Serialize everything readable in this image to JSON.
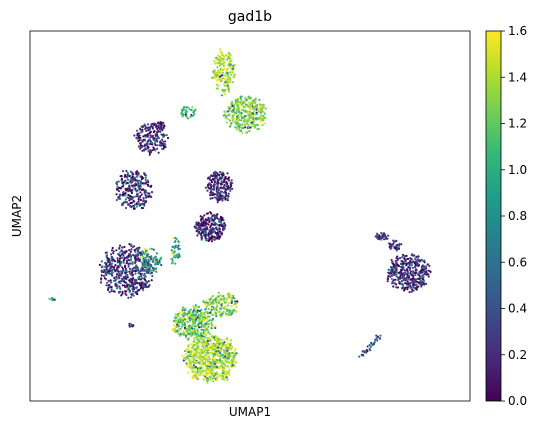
{
  "chart_data": {
    "type": "scatter",
    "title": "gad1b",
    "xlabel": "UMAP1",
    "ylabel": "UMAP2",
    "xticks": [],
    "yticks": [],
    "xlim": [
      0,
      100
    ],
    "ylim": [
      0,
      100
    ],
    "grid": false,
    "legend": "none",
    "colorbar": {
      "label": "",
      "range": [
        0.0,
        1.6
      ],
      "ticks": [
        0.0,
        0.2,
        0.4,
        0.6,
        0.8,
        1.0,
        1.2,
        1.4,
        1.6
      ],
      "tick_labels": [
        "0.0",
        "0.2",
        "0.4",
        "0.6",
        "0.8",
        "1.0",
        "1.2",
        "1.4",
        "1.6"
      ],
      "colormap": "viridis",
      "placement": "right"
    },
    "clusters": [
      {
        "cx": 44.0,
        "cy": 89.0,
        "rx": 2.6,
        "ry": 6.0,
        "n": 180,
        "value": 1.4,
        "spread": 0.12
      },
      {
        "cx": 49.0,
        "cy": 77.5,
        "rx": 4.8,
        "ry": 4.8,
        "n": 320,
        "value": 1.3,
        "spread": 0.15
      },
      {
        "cx": 36.0,
        "cy": 78.0,
        "rx": 1.8,
        "ry": 1.6,
        "n": 40,
        "value": 1.1,
        "spread": 0.15
      },
      {
        "cx": 27.5,
        "cy": 71.0,
        "rx": 3.6,
        "ry": 4.2,
        "n": 180,
        "value": 0.15,
        "spread": 0.2
      },
      {
        "cx": 23.5,
        "cy": 57.0,
        "rx": 4.2,
        "ry": 5.5,
        "n": 260,
        "value": 0.15,
        "spread": 0.3
      },
      {
        "cx": 29.5,
        "cy": 74.5,
        "rx": 1.2,
        "ry": 1.0,
        "n": 30,
        "value": 0.2,
        "spread": 0.15
      },
      {
        "cx": 43.0,
        "cy": 58.0,
        "rx": 3.0,
        "ry": 4.2,
        "n": 200,
        "value": 0.15,
        "spread": 0.2
      },
      {
        "cx": 41.0,
        "cy": 47.0,
        "rx": 3.6,
        "ry": 4.0,
        "n": 240,
        "value": 0.15,
        "spread": 0.25
      },
      {
        "cx": 22.0,
        "cy": 35.0,
        "rx": 6.0,
        "ry": 7.0,
        "n": 520,
        "value": 0.25,
        "spread": 0.3
      },
      {
        "cx": 27.5,
        "cy": 38.0,
        "rx": 2.5,
        "ry": 3.5,
        "n": 80,
        "value": 0.9,
        "spread": 0.3
      },
      {
        "cx": 33.0,
        "cy": 40.0,
        "rx": 1.2,
        "ry": 4.0,
        "n": 40,
        "value": 0.9,
        "spread": 0.3
      },
      {
        "cx": 37.0,
        "cy": 21.0,
        "rx": 4.8,
        "ry": 4.5,
        "n": 330,
        "value": 1.25,
        "spread": 0.2
      },
      {
        "cx": 41.0,
        "cy": 11.5,
        "rx": 6.0,
        "ry": 6.5,
        "n": 650,
        "value": 1.4,
        "spread": 0.15
      },
      {
        "cx": 43.5,
        "cy": 26.0,
        "rx": 4.0,
        "ry": 3.5,
        "n": 160,
        "value": 1.3,
        "spread": 0.2
      },
      {
        "cx": 5.0,
        "cy": 27.5,
        "rx": 0.8,
        "ry": 0.3,
        "n": 12,
        "value": 1.0,
        "spread": 0.15
      },
      {
        "cx": 23.0,
        "cy": 20.5,
        "rx": 0.5,
        "ry": 0.5,
        "n": 10,
        "value": 0.25,
        "spread": 0.1
      },
      {
        "cx": 86.0,
        "cy": 34.5,
        "rx": 4.8,
        "ry": 5.0,
        "n": 380,
        "value": 0.2,
        "spread": 0.25
      },
      {
        "cx": 83.0,
        "cy": 42.0,
        "rx": 1.5,
        "ry": 1.5,
        "n": 40,
        "value": 0.25,
        "spread": 0.2
      },
      {
        "cx": 80.0,
        "cy": 44.5,
        "rx": 1.5,
        "ry": 1.0,
        "n": 40,
        "value": 0.2,
        "spread": 0.15
      }
    ],
    "streaks": [
      {
        "x0": 75.0,
        "y0": 12.0,
        "x1": 79.5,
        "y1": 17.5,
        "n": 35,
        "value": 0.45,
        "spread": 0.2
      }
    ]
  }
}
